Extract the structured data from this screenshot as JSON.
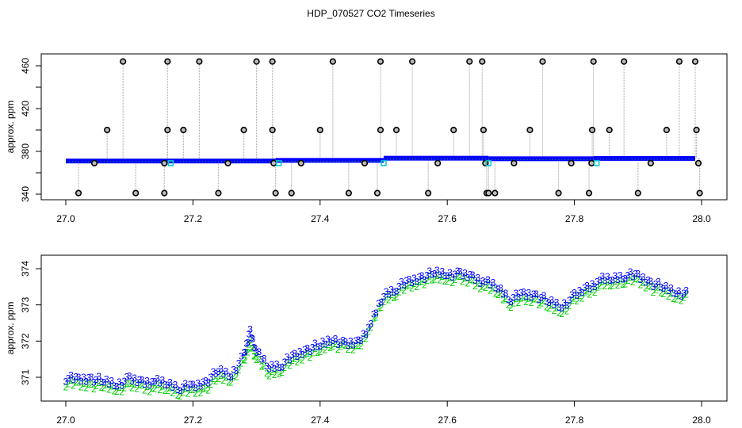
{
  "title": "HDP_070527  CO2 Timeseries",
  "colors": {
    "series3": "#0000ff",
    "series2": "#00cc00",
    "outlier": "#000000",
    "stem": "#aaaaaa",
    "flag": "#00cccc"
  },
  "chart_data": [
    {
      "type": "scatter",
      "title": "HDP_070527  CO2 Timeseries",
      "xlabel": "",
      "ylabel": "approx. ppm",
      "xlim": [
        26.98,
        28.04
      ],
      "ylim": [
        336,
        469
      ],
      "xticks": [
        27.0,
        27.2,
        27.4,
        27.6,
        27.8,
        28.0
      ],
      "xtick_labels": [
        "27.0",
        "27.2",
        "27.4",
        "27.6",
        "27.8",
        "28.0"
      ],
      "yticks": [
        340,
        360,
        380,
        400,
        420,
        440,
        460
      ],
      "ytick_labels": [
        "340",
        "",
        "380",
        "",
        "420",
        "",
        "460"
      ],
      "grid": false,
      "baseline_segments": [
        {
          "x_start": 27.0,
          "x_end": 27.33,
          "value": 371.0
        },
        {
          "x_start": 27.33,
          "x_end": 27.5,
          "value": 371.6
        },
        {
          "x_start": 27.5,
          "x_end": 27.665,
          "value": 373.6
        },
        {
          "x_start": 27.665,
          "x_end": 27.83,
          "value": 373.1
        },
        {
          "x_start": 27.83,
          "x_end": 27.99,
          "value": 373.4
        }
      ],
      "outliers": [
        {
          "x": 27.02,
          "y": 341
        },
        {
          "x": 27.045,
          "y": 369
        },
        {
          "x": 27.065,
          "y": 400
        },
        {
          "x": 27.09,
          "y": 464
        },
        {
          "x": 27.11,
          "y": 341
        },
        {
          "x": 27.155,
          "y": 341
        },
        {
          "x": 27.16,
          "y": 400
        },
        {
          "x": 27.16,
          "y": 464
        },
        {
          "x": 27.155,
          "y": 369
        },
        {
          "x": 27.185,
          "y": 400
        },
        {
          "x": 27.21,
          "y": 464
        },
        {
          "x": 27.24,
          "y": 341
        },
        {
          "x": 27.255,
          "y": 369
        },
        {
          "x": 27.28,
          "y": 400
        },
        {
          "x": 27.3,
          "y": 464
        },
        {
          "x": 27.325,
          "y": 400
        },
        {
          "x": 27.325,
          "y": 464
        },
        {
          "x": 27.327,
          "y": 369
        },
        {
          "x": 27.33,
          "y": 341
        },
        {
          "x": 27.355,
          "y": 341
        },
        {
          "x": 27.37,
          "y": 369
        },
        {
          "x": 27.4,
          "y": 400
        },
        {
          "x": 27.42,
          "y": 464
        },
        {
          "x": 27.445,
          "y": 341
        },
        {
          "x": 27.47,
          "y": 369
        },
        {
          "x": 27.49,
          "y": 341
        },
        {
          "x": 27.495,
          "y": 400
        },
        {
          "x": 27.495,
          "y": 464
        },
        {
          "x": 27.52,
          "y": 400
        },
        {
          "x": 27.545,
          "y": 464
        },
        {
          "x": 27.57,
          "y": 341
        },
        {
          "x": 27.585,
          "y": 369
        },
        {
          "x": 27.61,
          "y": 400
        },
        {
          "x": 27.635,
          "y": 464
        },
        {
          "x": 27.655,
          "y": 464
        },
        {
          "x": 27.657,
          "y": 400
        },
        {
          "x": 27.66,
          "y": 369
        },
        {
          "x": 27.662,
          "y": 341
        },
        {
          "x": 27.665,
          "y": 341
        },
        {
          "x": 27.675,
          "y": 341
        },
        {
          "x": 27.705,
          "y": 369
        },
        {
          "x": 27.73,
          "y": 400
        },
        {
          "x": 27.75,
          "y": 464
        },
        {
          "x": 27.775,
          "y": 341
        },
        {
          "x": 27.795,
          "y": 369
        },
        {
          "x": 27.823,
          "y": 341
        },
        {
          "x": 27.827,
          "y": 369
        },
        {
          "x": 27.828,
          "y": 400
        },
        {
          "x": 27.83,
          "y": 464
        },
        {
          "x": 27.855,
          "y": 400
        },
        {
          "x": 27.878,
          "y": 464
        },
        {
          "x": 27.9,
          "y": 341
        },
        {
          "x": 27.92,
          "y": 369
        },
        {
          "x": 27.945,
          "y": 400
        },
        {
          "x": 27.965,
          "y": 464
        },
        {
          "x": 27.99,
          "y": 464
        },
        {
          "x": 27.992,
          "y": 400
        },
        {
          "x": 27.995,
          "y": 369
        },
        {
          "x": 27.997,
          "y": 341
        }
      ],
      "flag_markers": [
        {
          "x": 27.165,
          "y": 369
        },
        {
          "x": 27.335,
          "y": 369
        },
        {
          "x": 27.5,
          "y": 369
        },
        {
          "x": 27.665,
          "y": 369
        },
        {
          "x": 27.835,
          "y": 369
        }
      ]
    },
    {
      "type": "scatter",
      "xlabel": "",
      "ylabel": "approx. ppm",
      "xlim": [
        26.98,
        28.04
      ],
      "ylim": [
        370.35,
        374.4
      ],
      "xticks": [
        27.0,
        27.2,
        27.4,
        27.6,
        27.8,
        28.0
      ],
      "xtick_labels": [
        "27.0",
        "27.2",
        "27.4",
        "27.6",
        "27.8",
        "28.0"
      ],
      "yticks": [
        371,
        372,
        373,
        374
      ],
      "ytick_labels": [
        "371",
        "372",
        "373",
        "374"
      ],
      "grid": false,
      "marker_symbols": {
        "series3": "3",
        "series2": "2"
      },
      "x": [
        27.0,
        27.02,
        27.04,
        27.06,
        27.08,
        27.1,
        27.12,
        27.14,
        27.16,
        27.18,
        27.2,
        27.22,
        27.24,
        27.26,
        27.28,
        27.29,
        27.3,
        27.32,
        27.34,
        27.36,
        27.38,
        27.4,
        27.42,
        27.44,
        27.46,
        27.48,
        27.5,
        27.52,
        27.54,
        27.56,
        27.58,
        27.6,
        27.62,
        27.64,
        27.66,
        27.68,
        27.7,
        27.72,
        27.74,
        27.76,
        27.78,
        27.8,
        27.82,
        27.84,
        27.86,
        27.88,
        27.9,
        27.92,
        27.94,
        27.96,
        27.98
      ],
      "series": [
        {
          "name": "3",
          "values": [
            371.0,
            370.95,
            371.0,
            370.9,
            370.85,
            370.95,
            370.9,
            370.9,
            370.85,
            370.75,
            370.75,
            370.9,
            371.2,
            371.1,
            371.6,
            372.3,
            371.7,
            371.3,
            371.4,
            371.6,
            371.8,
            371.9,
            372.1,
            371.9,
            372.0,
            372.5,
            373.3,
            373.5,
            373.65,
            373.8,
            373.9,
            373.9,
            373.85,
            373.8,
            373.65,
            373.5,
            373.2,
            373.3,
            373.3,
            373.1,
            373.0,
            373.25,
            373.5,
            373.7,
            373.75,
            373.85,
            373.8,
            373.65,
            373.5,
            373.4,
            373.3
          ]
        },
        {
          "name": "2",
          "values": [
            370.85,
            370.8,
            370.8,
            370.75,
            370.7,
            370.75,
            370.75,
            370.7,
            370.7,
            370.6,
            370.6,
            370.7,
            371.0,
            370.95,
            371.4,
            372.0,
            371.5,
            371.1,
            371.25,
            371.45,
            371.65,
            371.75,
            371.95,
            371.8,
            371.85,
            372.4,
            373.15,
            373.35,
            373.5,
            373.65,
            373.75,
            373.75,
            373.7,
            373.65,
            373.5,
            373.35,
            373.05,
            373.15,
            373.15,
            372.95,
            372.85,
            373.1,
            373.35,
            373.55,
            373.6,
            373.7,
            373.65,
            373.5,
            373.35,
            373.25,
            373.2
          ]
        }
      ]
    }
  ]
}
